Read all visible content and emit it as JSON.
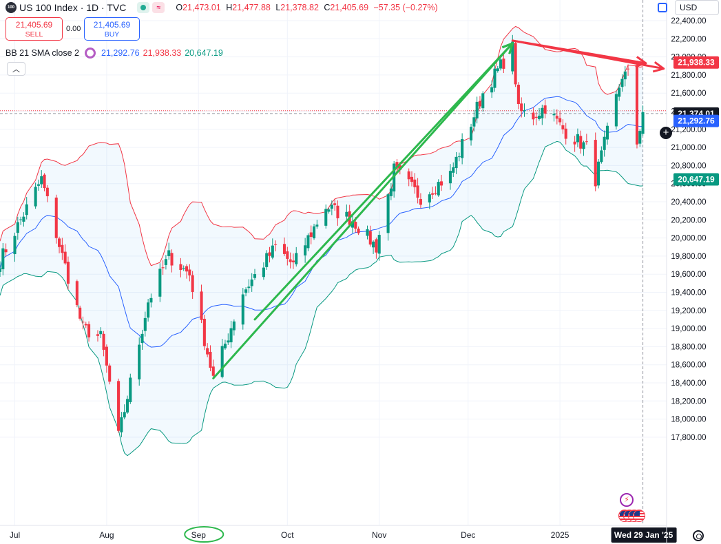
{
  "header": {
    "symbol_badge": "100",
    "title": "US 100 Index · 1D · TVC",
    "ohlc": [
      {
        "key": "O",
        "value": "21,473.01"
      },
      {
        "key": "H",
        "value": "21,477.88"
      },
      {
        "key": "L",
        "value": "21,378.82"
      },
      {
        "key": "C",
        "value": "21,405.69"
      }
    ],
    "change": "−57.35 (−0.27%)",
    "currency": "USD"
  },
  "trade": {
    "sell_price": "21,405.69",
    "sell_label": "SELL",
    "spread": "0.00",
    "buy_price": "21,405.69",
    "buy_label": "BUY"
  },
  "indicator": {
    "name": "BB 21 SMA close 2",
    "basis": "21,292.76",
    "upper": "21,938.33",
    "lower": "20,647.19"
  },
  "colors": {
    "up": "#089981",
    "down": "#f23645",
    "basis": "#2962ff",
    "upper_band": "#f23645",
    "lower_band": "#089981",
    "band_fill": "#2196f3",
    "drawing_green": "#2db84d",
    "drawing_red": "#f23645"
  },
  "icons": {
    "collapse": "chevron-up-icon",
    "settings": "gear-icon",
    "add": "plus-icon",
    "alert": "flash-icon",
    "flag": "us-flag-icon",
    "screenshot": "screenshot-icon"
  },
  "chart_data": {
    "type": "candlestick",
    "title": "US 100 Index · 1D · TVC",
    "y_range": [
      17700,
      22500
    ],
    "x_range": [
      "2024-06-26",
      "2025-02-06"
    ],
    "y_ticks": [
      "22,400.00",
      "22,200.00",
      "22,000.00",
      "21,800.00",
      "21,600.00",
      "21,400.00",
      "21,200.00",
      "21,000.00",
      "20,800.00",
      "20,600.00",
      "20,400.00",
      "20,200.00",
      "20,000.00",
      "19,800.00",
      "19,600.00",
      "19,400.00",
      "19,200.00",
      "19,000.00",
      "18,800.00",
      "18,600.00",
      "18,400.00",
      "18,200.00",
      "18,000.00",
      "17,800.00"
    ],
    "x_ticks": [
      {
        "label": "Jul",
        "date": "2024-07-01"
      },
      {
        "label": "Aug",
        "date": "2024-08-01"
      },
      {
        "label": "Sep",
        "date": "2024-09-01"
      },
      {
        "label": "Oct",
        "date": "2024-10-01"
      },
      {
        "label": "Nov",
        "date": "2024-11-01"
      },
      {
        "label": "Dec",
        "date": "2024-12-01"
      },
      {
        "label": "2025",
        "date": "2025-01-01"
      }
    ],
    "crosshair_label": "Wed 29 Jan '25",
    "crosshair_date": "2025-01-29",
    "price_labels": [
      {
        "value": 21938.33,
        "text": "21,938.33",
        "kind": "upper"
      },
      {
        "value": 21374.01,
        "text": "21,374.01",
        "kind": "crosshair"
      },
      {
        "value": 21292.76,
        "text": "21,292.76",
        "kind": "basis"
      },
      {
        "value": 20647.19,
        "text": "20,647.19",
        "kind": "lower"
      }
    ],
    "last_price": 21405.69,
    "trend_close_anchors": [
      {
        "date": "2024-06-26",
        "close": 19750
      },
      {
        "date": "2024-07-10",
        "close": 20650
      },
      {
        "date": "2024-07-17",
        "close": 19800
      },
      {
        "date": "2024-07-24",
        "close": 19000
      },
      {
        "date": "2024-07-30",
        "close": 18900
      },
      {
        "date": "2024-08-02",
        "close": 18400
      },
      {
        "date": "2024-08-05",
        "close": 17800
      },
      {
        "date": "2024-08-15",
        "close": 19300
      },
      {
        "date": "2024-08-22",
        "close": 19800
      },
      {
        "date": "2024-08-29",
        "close": 19600
      },
      {
        "date": "2024-09-06",
        "close": 18450
      },
      {
        "date": "2024-09-16",
        "close": 19400
      },
      {
        "date": "2024-09-27",
        "close": 19900
      },
      {
        "date": "2024-10-03",
        "close": 19700
      },
      {
        "date": "2024-10-14",
        "close": 20350
      },
      {
        "date": "2024-10-23",
        "close": 20200
      },
      {
        "date": "2024-10-31",
        "close": 19900
      },
      {
        "date": "2024-11-06",
        "close": 20750
      },
      {
        "date": "2024-11-15",
        "close": 20450
      },
      {
        "date": "2024-11-25",
        "close": 20700
      },
      {
        "date": "2024-12-06",
        "close": 21600
      },
      {
        "date": "2024-12-16",
        "close": 22100
      },
      {
        "date": "2024-12-18",
        "close": 21400
      },
      {
        "date": "2024-12-23",
        "close": 21350
      },
      {
        "date": "2024-12-27",
        "close": 21450
      },
      {
        "date": "2025-01-02",
        "close": 21200
      },
      {
        "date": "2025-01-10",
        "close": 21000
      },
      {
        "date": "2025-01-13",
        "close": 20650
      },
      {
        "date": "2025-01-22",
        "close": 21800
      },
      {
        "date": "2025-01-24",
        "close": 21800
      },
      {
        "date": "2025-01-27",
        "close": 21050
      },
      {
        "date": "2025-01-29",
        "close": 21405
      }
    ],
    "annotations": [
      {
        "type": "arrow",
        "color": "green",
        "from": {
          "date": "2024-09-06",
          "y": 18450
        },
        "to": {
          "date": "2024-12-16",
          "y": 22150
        }
      },
      {
        "type": "arrow",
        "color": "green",
        "from": {
          "date": "2024-09-20",
          "y": 19100
        },
        "to": {
          "date": "2024-12-16",
          "y": 22150
        }
      },
      {
        "type": "arrow",
        "color": "red",
        "from": {
          "date": "2024-12-16",
          "y": 22180
        },
        "to": {
          "date": "2025-02-05",
          "y": 21870
        }
      },
      {
        "type": "arrow",
        "color": "red",
        "from": {
          "date": "2024-12-16",
          "y": 22180
        },
        "to": {
          "date": "2025-01-30",
          "y": 21930
        }
      },
      {
        "type": "ellipse",
        "color": "green",
        "date": "2024-09-01",
        "label": "Sep"
      }
    ]
  }
}
